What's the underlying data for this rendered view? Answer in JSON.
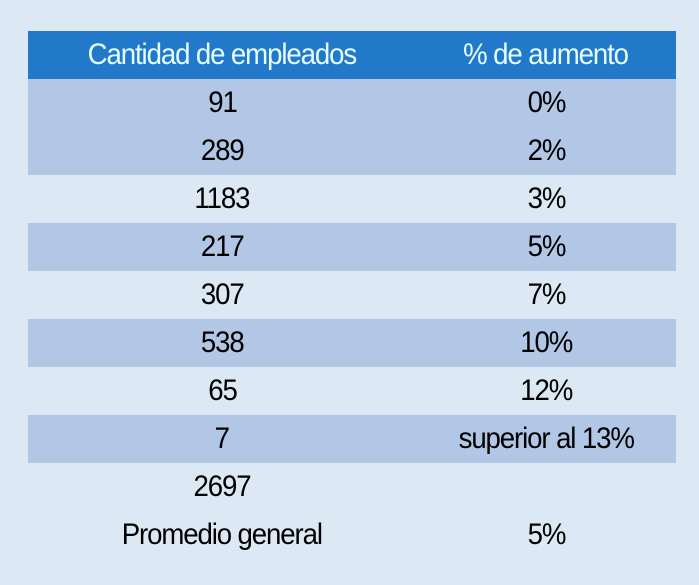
{
  "table": {
    "headers": [
      "Cantidad de empleados",
      "% de aumento"
    ],
    "rows": [
      {
        "empleados": "91",
        "aumento": "0%"
      },
      {
        "empleados": "289",
        "aumento": "2%"
      },
      {
        "empleados": "1183",
        "aumento": "3%"
      },
      {
        "empleados": "217",
        "aumento": "5%"
      },
      {
        "empleados": "307",
        "aumento": "7%"
      },
      {
        "empleados": "538",
        "aumento": "10%"
      },
      {
        "empleados": "65",
        "aumento": "12%"
      },
      {
        "empleados": "7",
        "aumento": "superior al 13%"
      }
    ],
    "total": {
      "empleados": "2697",
      "aumento": ""
    },
    "average": {
      "label": "Promedio general",
      "value": "5%"
    }
  },
  "colors": {
    "header_bg": "#2279c9",
    "band": "#b2c6e6",
    "background": "#dce9f5"
  }
}
